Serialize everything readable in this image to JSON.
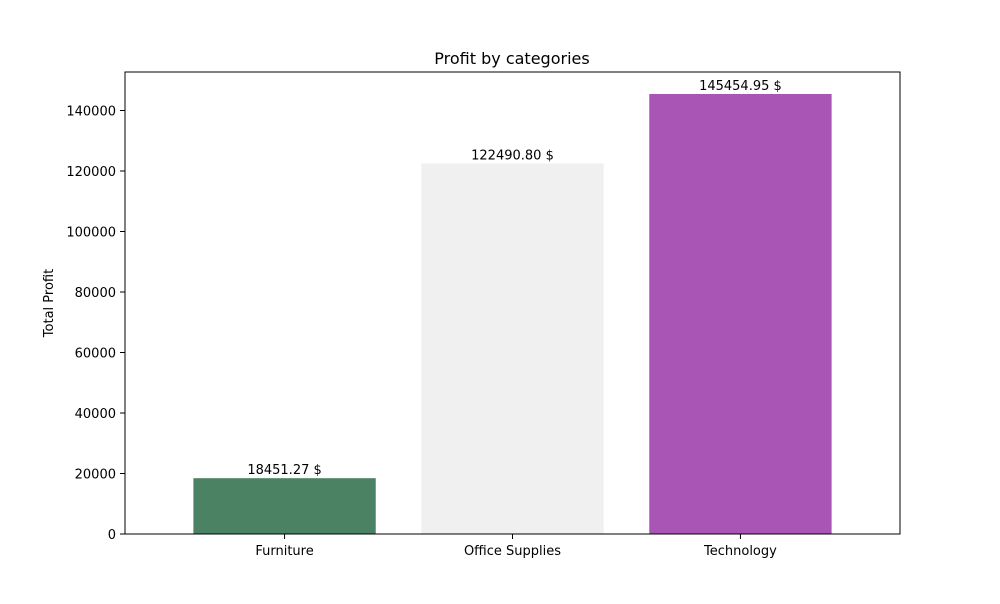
{
  "chart_data": {
    "type": "bar",
    "title": "Profit by categories",
    "xlabel": "",
    "ylabel": "Total Profit",
    "categories": [
      "Furniture",
      "Office Supplies",
      "Technology"
    ],
    "values": [
      18451.27,
      122490.8,
      145454.95
    ],
    "data_labels": [
      "18451.27 $",
      "122490.80 $",
      "145454.95 $"
    ],
    "bar_colors": [
      "#4b8264",
      "#f0f0f0",
      "#a855b5"
    ],
    "ylim": [
      0,
      152727.7
    ],
    "yticks": [
      0,
      20000,
      40000,
      60000,
      80000,
      100000,
      120000,
      140000
    ],
    "ytick_labels": [
      "0",
      "20000",
      "40000",
      "60000",
      "80000",
      "100000",
      "120000",
      "140000"
    ],
    "grid": false,
    "legend": "none"
  }
}
